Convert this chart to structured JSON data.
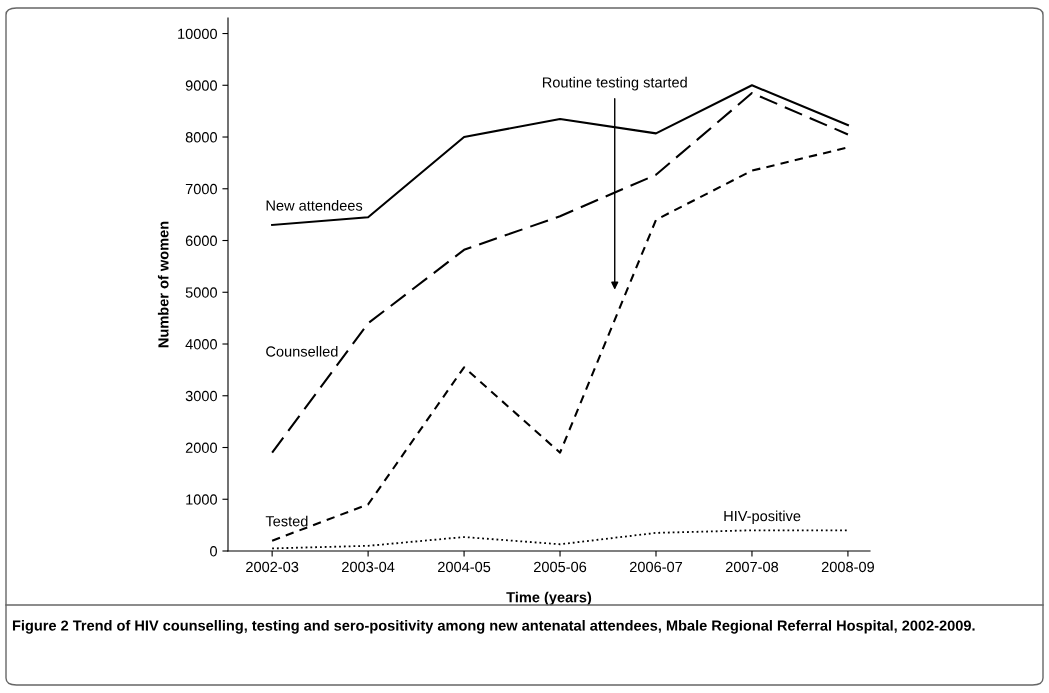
{
  "chart_data": {
    "type": "line",
    "xlabel": "Time (years)",
    "ylabel": "Number of women",
    "categories": [
      "2002-03",
      "2003-04",
      "2004-05",
      "2005-06",
      "2006-07",
      "2007-08",
      "2008-09"
    ],
    "series": [
      {
        "name": "New attendees",
        "color": "#000000",
        "line_style": "solid",
        "values": [
          6300,
          6450,
          8000,
          8350,
          8070,
          9000,
          8230
        ]
      },
      {
        "name": "Counselled",
        "color": "#000000",
        "line_style": "dashed",
        "values": [
          1900,
          4400,
          5820,
          6470,
          7270,
          8850,
          8050
        ]
      },
      {
        "name": "Tested",
        "color": "#000000",
        "line_style": "dashed",
        "values": [
          200,
          900,
          3550,
          1900,
          6400,
          7350,
          7800
        ]
      },
      {
        "name": "HIV-positive",
        "color": "#000000",
        "line_style": "dotted",
        "values": [
          50,
          100,
          270,
          130,
          350,
          400,
          400
        ]
      }
    ],
    "ylim": [
      0,
      10300
    ],
    "yticks": [
      0,
      1000,
      2000,
      3000,
      4000,
      5000,
      6000,
      7000,
      8000,
      9000,
      10000
    ],
    "grid": false,
    "legend": false,
    "marker": "none",
    "annotations": [
      "Routine testing started",
      "Figure 2 Trend of HIV counselling, testing and sero-positivity among new antenatal attendees, Mbale Regional Referral Hospital, 2002-2009."
    ]
  }
}
